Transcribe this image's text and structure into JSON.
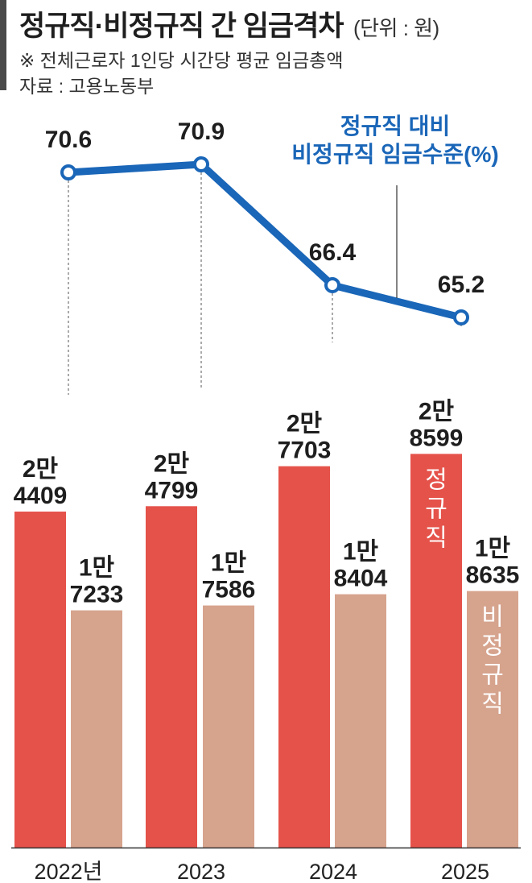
{
  "header": {
    "title": "정규직·비정규직 간 임금격차",
    "unit": "(단위 : 원)",
    "note": "※ 전체근로자 1인당 시간당 평균 임금총액",
    "source": "자료 : 고용노동부"
  },
  "colors": {
    "regular": "#e5524a",
    "irregular": "#d6a38d",
    "line": "#1a66b8"
  },
  "chart_data": {
    "type": "bar",
    "categories": [
      "2022년",
      "2023",
      "2024",
      "2025"
    ],
    "series": [
      {
        "name": "정규직",
        "values": [
          24409,
          24799,
          27703,
          28599
        ],
        "labels": [
          [
            "2만",
            "4409"
          ],
          [
            "2만",
            "4799"
          ],
          [
            "2만",
            "7703"
          ],
          [
            "2만",
            "8599"
          ]
        ]
      },
      {
        "name": "비정규직",
        "values": [
          17233,
          17586,
          18404,
          18635
        ],
        "labels": [
          [
            "1만",
            "7233"
          ],
          [
            "1만",
            "7586"
          ],
          [
            "1만",
            "8404"
          ],
          [
            "1만",
            "8635"
          ]
        ]
      }
    ],
    "line_series": {
      "name_lines": [
        "정규직 대비",
        "비정규직 임금수준(%)"
      ],
      "values": [
        70.6,
        70.9,
        66.4,
        65.2
      ]
    },
    "bar_tags": [
      "정규직",
      "비정규직"
    ]
  }
}
